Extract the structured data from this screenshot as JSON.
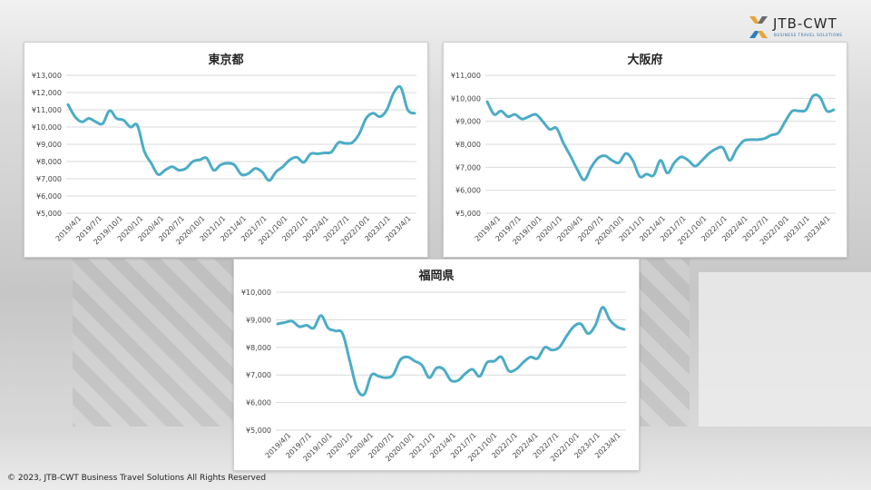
{
  "logo": {
    "name": "JTB-CWT",
    "tagline": "BUSINESS TRAVEL SOLUTIONS",
    "colors": [
      "#e8a33a",
      "#2a7fc0",
      "#6a6a6a"
    ]
  },
  "footer": {
    "copyright": "© 2023, JTB-CWT Business Travel Solutions All Rights Reserved"
  },
  "style": {
    "line_color": "#4bacc6",
    "grid_color": "#d9d9d9"
  },
  "chart_data": [
    {
      "type": "line",
      "title": "東京都",
      "x_tick_labels": [
        "2019/4/1",
        "2019/7/1",
        "2019/10/1",
        "2020/1/1",
        "2020/4/1",
        "2020/7/1",
        "2020/10/1",
        "2021/1/1",
        "2021/4/1",
        "2021/7/1",
        "2021/10/1",
        "2022/1/1",
        "2022/4/1",
        "2022/7/1",
        "2022/10/1",
        "2023/1/1",
        "2023/4/1"
      ],
      "y_ticks": [
        5000,
        6000,
        7000,
        8000,
        9000,
        10000,
        11000,
        12000,
        13000
      ],
      "y_tick_labels": [
        "¥5,000",
        "¥6,000",
        "¥7,000",
        "¥8,000",
        "¥9,000",
        "¥10,000",
        "¥11,000",
        "¥12,000",
        "¥13,000"
      ],
      "ylim": [
        5000,
        13000
      ],
      "grid": true,
      "series": [
        {
          "values": [
            11300,
            10600,
            10300,
            10500,
            10300,
            10200,
            10950,
            10500,
            10400,
            10000,
            10100,
            8600,
            7900,
            7250,
            7500,
            7700,
            7500,
            7600,
            8000,
            8100,
            8200,
            7500,
            7800,
            7900,
            7800,
            7250,
            7300,
            7600,
            7400,
            6900,
            7400,
            7700,
            8100,
            8250,
            7950,
            8450,
            8450,
            8500,
            8550,
            9100,
            9050,
            9100,
            9600,
            10500,
            10800,
            10600,
            11000,
            12000,
            12300,
            11000,
            10800
          ]
        }
      ]
    },
    {
      "type": "line",
      "title": "大阪府",
      "x_tick_labels": [
        "2019/4/1",
        "2019/7/1",
        "2019/10/1",
        "2020/1/1",
        "2020/4/1",
        "2020/7/1",
        "2020/10/1",
        "2021/1/1",
        "2021/4/1",
        "2021/7/1",
        "2021/10/1",
        "2022/1/1",
        "2022/4/1",
        "2022/7/1",
        "2022/10/1",
        "2023/1/1",
        "2023/4/1"
      ],
      "y_ticks": [
        5000,
        6000,
        7000,
        8000,
        9000,
        10000,
        11000
      ],
      "y_tick_labels": [
        "¥5,000",
        "¥6,000",
        "¥7,000",
        "¥8,000",
        "¥9,000",
        "¥10,000",
        "¥11,000"
      ],
      "ylim": [
        5000,
        11000
      ],
      "grid": true,
      "series": [
        {
          "values": [
            9850,
            9300,
            9450,
            9200,
            9300,
            9100,
            9200,
            9300,
            9000,
            8650,
            8700,
            8050,
            7500,
            6900,
            6450,
            7000,
            7400,
            7500,
            7300,
            7200,
            7600,
            7300,
            6600,
            6700,
            6650,
            7300,
            6750,
            7200,
            7450,
            7300,
            7050,
            7300,
            7600,
            7800,
            7850,
            7300,
            7800,
            8150,
            8200,
            8200,
            8250,
            8400,
            8500,
            9000,
            9450,
            9450,
            9500,
            10100,
            10050,
            9450,
            9500
          ]
        }
      ]
    },
    {
      "type": "line",
      "title": "福岡県",
      "x_tick_labels": [
        "2019/4/1",
        "2019/7/1",
        "2019/10/1",
        "2020/1/1",
        "2020/4/1",
        "2020/7/1",
        "2020/10/1",
        "2021/1/1",
        "2021/4/1",
        "2021/7/1",
        "2021/10/1",
        "2022/1/1",
        "2022/4/1",
        "2022/7/1",
        "2022/10/1",
        "2023/1/1",
        "2023/4/1"
      ],
      "y_ticks": [
        5000,
        6000,
        7000,
        8000,
        9000,
        10000
      ],
      "y_tick_labels": [
        "¥5,000",
        "¥6,000",
        "¥7,000",
        "¥8,000",
        "¥9,000",
        "¥10,000"
      ],
      "ylim": [
        5000,
        10000
      ],
      "grid": true,
      "series": [
        {
          "values": [
            8850,
            8900,
            8950,
            8750,
            8800,
            8700,
            9150,
            8700,
            8600,
            8500,
            7500,
            6500,
            6300,
            7000,
            6950,
            6900,
            7000,
            7550,
            7650,
            7500,
            7350,
            6900,
            7250,
            7200,
            6800,
            6800,
            7050,
            7200,
            6950,
            7450,
            7500,
            7650,
            7150,
            7200,
            7450,
            7650,
            7600,
            8000,
            7900,
            8000,
            8400,
            8750,
            8850,
            8500,
            8800,
            9450,
            9000,
            8750,
            8650
          ]
        }
      ]
    }
  ]
}
